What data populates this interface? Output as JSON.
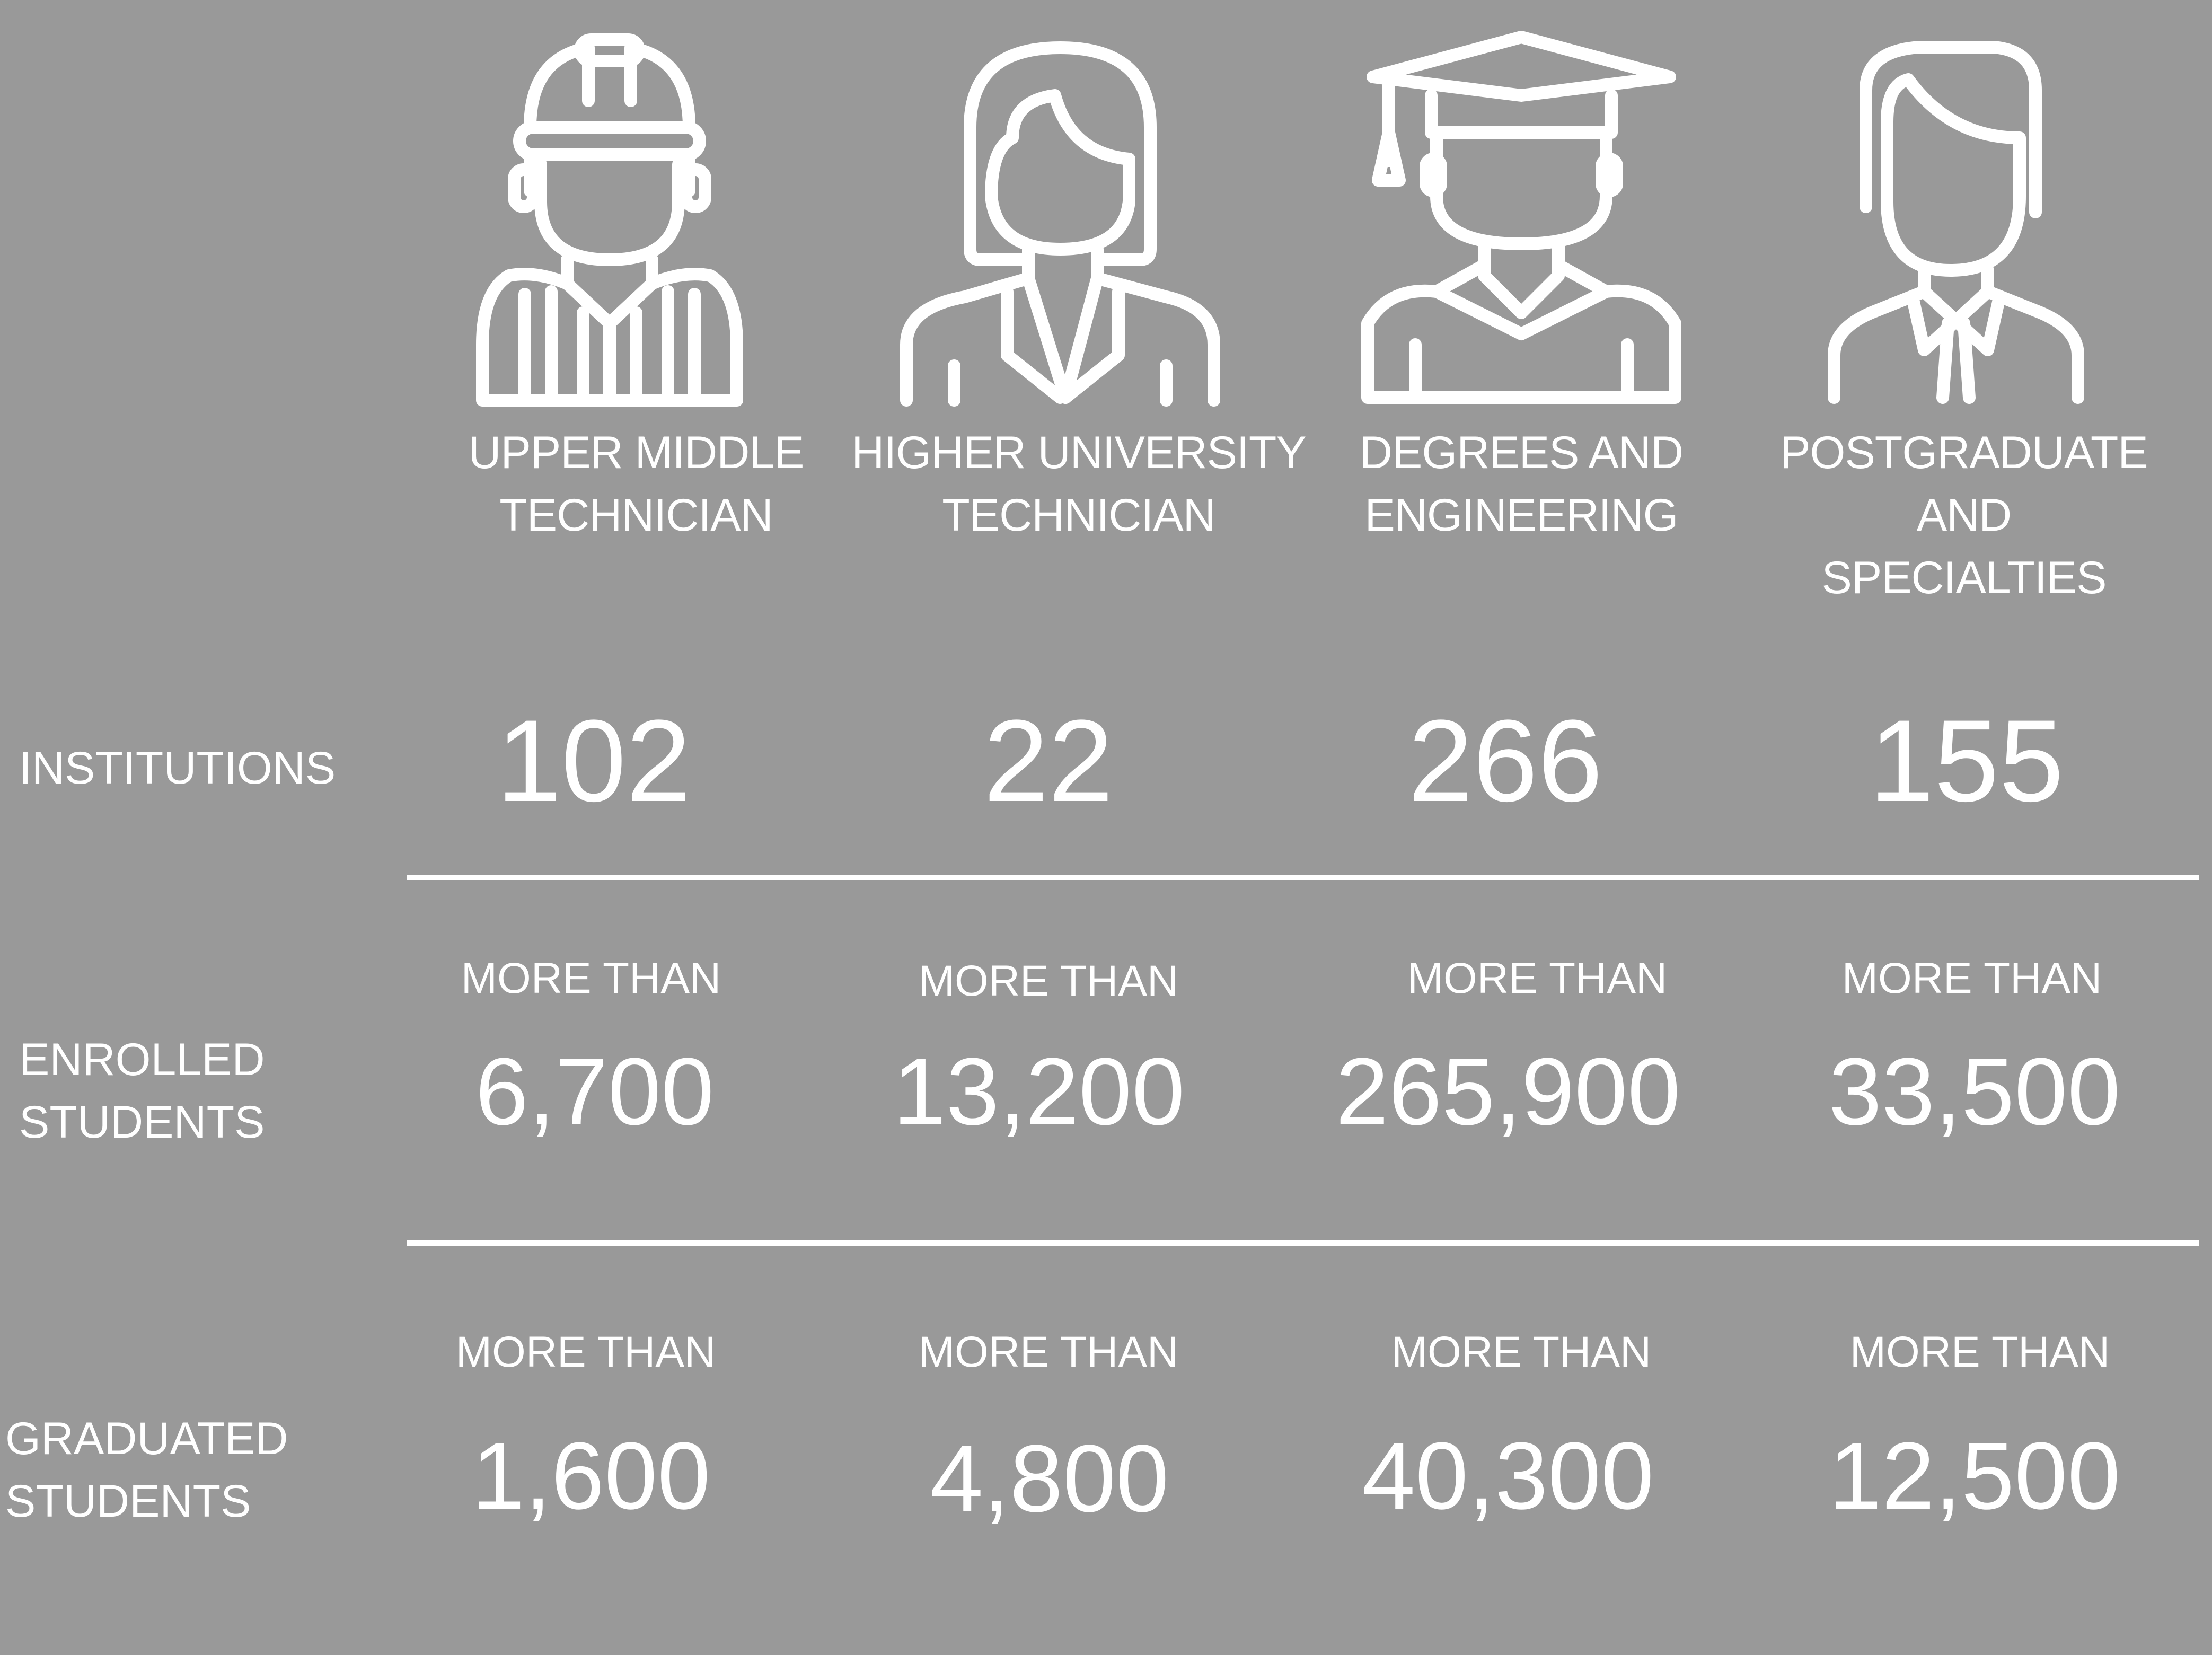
{
  "colors": {
    "background": "#999999",
    "foreground": "#ffffff"
  },
  "columns": [
    {
      "icon": "construction-worker-icon",
      "title_line1": "UPPER MIDDLE",
      "title_line2": "TECHNICIAN",
      "institutions": "102",
      "enrolled_prefix": "MORE THAN",
      "enrolled": "6,700",
      "graduated_prefix": "MORE THAN",
      "graduated": "1,600"
    },
    {
      "icon": "woman-professional-icon",
      "title_line1": "HIGHER UNIVERSITY",
      "title_line2": "TECHNICIAN",
      "institutions": "22",
      "enrolled_prefix": "MORE THAN",
      "enrolled": "13,200",
      "graduated_prefix": "MORE THAN",
      "graduated": "4,800"
    },
    {
      "icon": "graduate-icon",
      "title_line1": "DEGREES AND",
      "title_line2": "ENGINEERING",
      "institutions": "266",
      "enrolled_prefix": "MORE THAN",
      "enrolled": "265,900",
      "graduated_prefix": "MORE THAN",
      "graduated": "40,300"
    },
    {
      "icon": "businessman-icon",
      "title_line1": "POSTGRADUATE AND",
      "title_line2": "SPECIALTIES",
      "institutions": "155",
      "enrolled_prefix": "MORE THAN",
      "enrolled": "33,500",
      "graduated_prefix": "MORE THAN",
      "graduated": "12,500"
    }
  ],
  "rows": {
    "institutions": "INSTITUTIONS",
    "enrolled_line1": "ENROLLED",
    "enrolled_line2": "STUDENTS",
    "graduated_line1": "GRADUATED",
    "graduated_line2": "STUDENTS"
  }
}
